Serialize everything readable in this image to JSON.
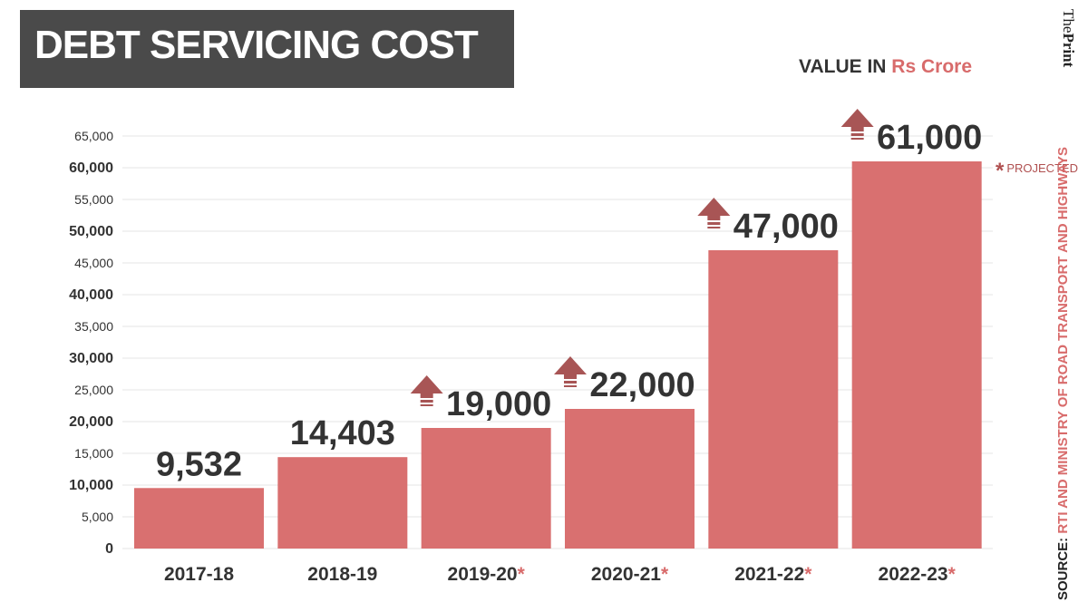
{
  "header": {
    "title": "DEBT SERVICING COST",
    "unit_prefix": "VALUE IN ",
    "unit_highlight": "Rs Crore",
    "brand_the": "The",
    "brand_print": "Print"
  },
  "source": {
    "prefix": "SOURCE: ",
    "text": "RTI AND MINISTRY OF ROAD TRANSPORT AND HIGHWAYS"
  },
  "legend": {
    "marker": "*",
    "label": "PROJECTED"
  },
  "colors": {
    "bar": "#d97070",
    "arrow": "#a85555",
    "title_bg": "#4a4a4a",
    "accent": "#d86b6b",
    "value_text": "#333333"
  },
  "chart_data": {
    "type": "bar",
    "title": "DEBT SERVICING COST",
    "xlabel": "",
    "ylabel": "VALUE IN Rs Crore",
    "categories": [
      "2017-18",
      "2018-19",
      "2019-20",
      "2020-21",
      "2021-22",
      "2022-23"
    ],
    "values": [
      9532,
      14403,
      19000,
      22000,
      47000,
      61000
    ],
    "data_labels": [
      "9,532",
      "14,403",
      "19,000",
      "22,000",
      "47,000",
      "61,000"
    ],
    "projected": [
      false,
      false,
      true,
      true,
      true,
      true
    ],
    "increase_arrow": [
      false,
      false,
      true,
      true,
      true,
      true
    ],
    "ylim": [
      0,
      65000
    ],
    "yticks": [
      0,
      5000,
      10000,
      15000,
      20000,
      25000,
      30000,
      35000,
      40000,
      45000,
      50000,
      55000,
      60000,
      65000
    ],
    "ytick_labels": [
      "0",
      "5,000",
      "10,000",
      "15,000",
      "20,000",
      "25,000",
      "30,000",
      "35,000",
      "40,000",
      "45,000",
      "50,000",
      "55,000",
      "60,000",
      "65,000"
    ],
    "ytick_bold": [
      true,
      false,
      true,
      false,
      true,
      false,
      true,
      false,
      true,
      false,
      true,
      false,
      true,
      false
    ],
    "grid": true
  }
}
